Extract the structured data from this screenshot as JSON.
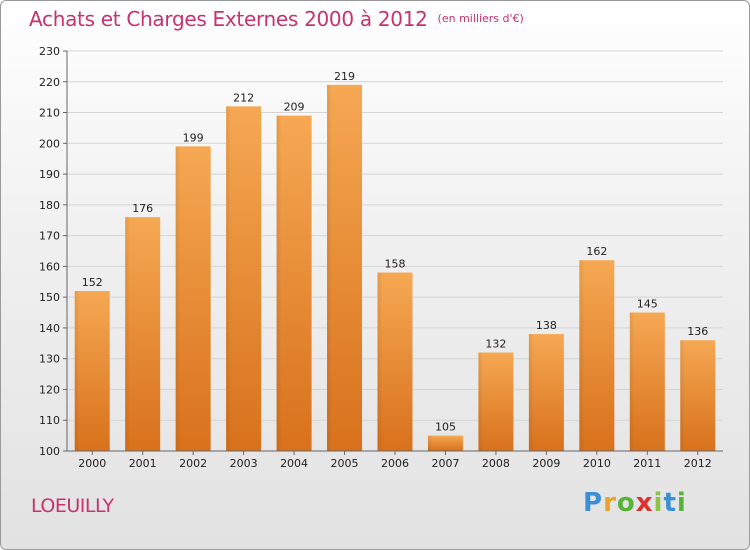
{
  "chart_data": {
    "type": "bar",
    "title": "Achats et Charges Externes 2000 à 2012",
    "subtitle": "(en milliers d'€)",
    "categories": [
      "2000",
      "2001",
      "2002",
      "2003",
      "2004",
      "2005",
      "2006",
      "2007",
      "2008",
      "2009",
      "2010",
      "2011",
      "2012"
    ],
    "values": [
      152,
      176,
      199,
      212,
      209,
      219,
      158,
      105,
      132,
      138,
      162,
      145,
      136
    ],
    "ylim": [
      100,
      230
    ],
    "yticks": [
      100,
      110,
      120,
      130,
      140,
      150,
      160,
      170,
      180,
      190,
      200,
      210,
      220,
      230
    ],
    "grid": true,
    "bar_color": "#f39a3c"
  },
  "location": "LOEUILLY",
  "logo": {
    "letters": [
      "P",
      "r",
      "o",
      "x",
      "i",
      "t",
      "i"
    ],
    "colors": [
      "#3a8fd6",
      "#e8a12a",
      "#58b33a",
      "#e0302e",
      "#8bc34a",
      "#3a8fd6",
      "#58b33a"
    ]
  }
}
